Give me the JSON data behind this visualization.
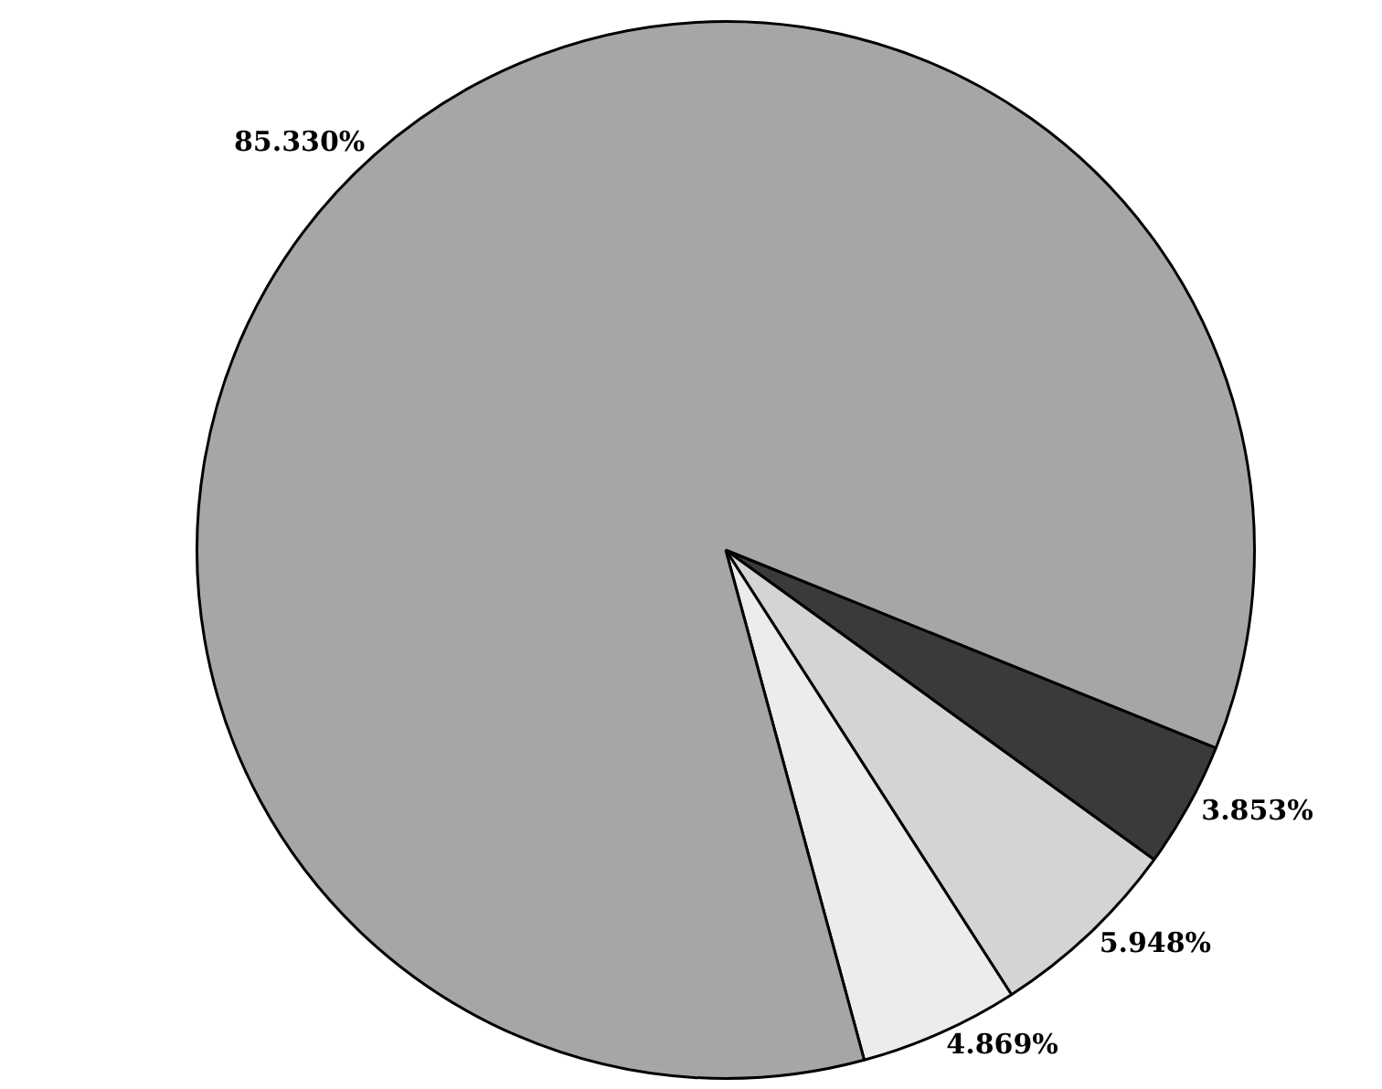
{
  "chart_data": {
    "type": "pie",
    "categories": [
      null,
      null,
      null,
      null
    ],
    "values": [
      3.853,
      5.948,
      4.869,
      85.33
    ],
    "colors": [
      "#3a3a3a",
      "#d4d4d4",
      "#ececec",
      "#a6a6a6"
    ],
    "value_labels": [
      "3.853%",
      "5.948%",
      "4.869%",
      "85.330%"
    ],
    "legend": false
  }
}
